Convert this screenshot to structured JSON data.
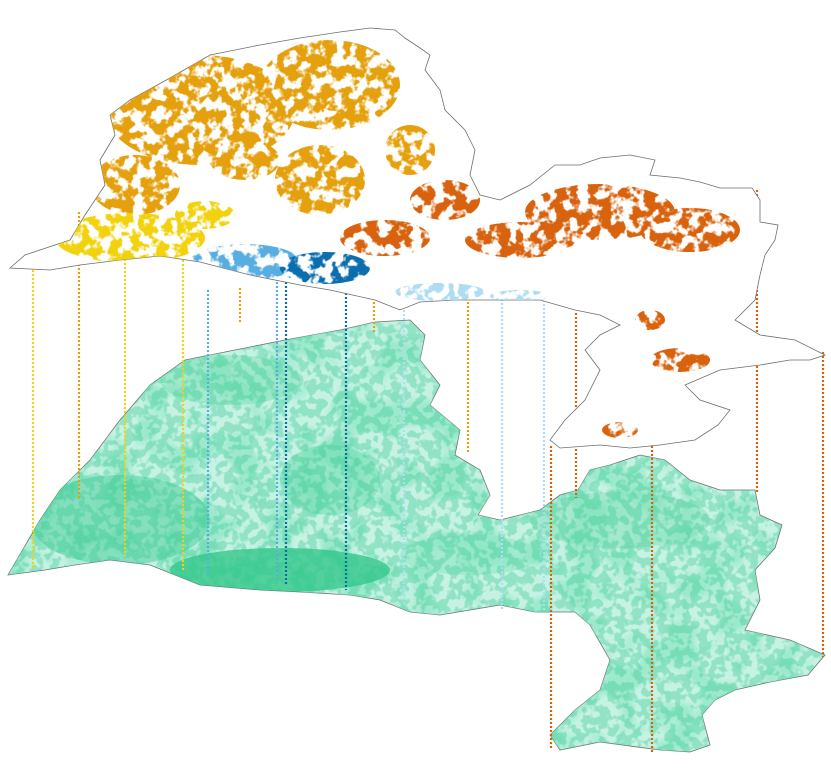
{
  "figure": {
    "type": "exploded-map-layers",
    "upper_layer": "classified-patch-map",
    "lower_layer": "continuous-shaded-base-map",
    "text_labels": []
  },
  "colors": {
    "yellow": "#f2d20a",
    "orange": "#e5a00a",
    "dark_orange": "#d8620a",
    "light_blue": "#58aee0",
    "dark_blue": "#0a6eae",
    "pale_blue": "#aedcf4",
    "base_fill": "#c6f2e4",
    "base_mid": "#8fe6c6",
    "base_dark": "#32c88c",
    "outline": "#6e6e6e"
  },
  "legend": []
}
